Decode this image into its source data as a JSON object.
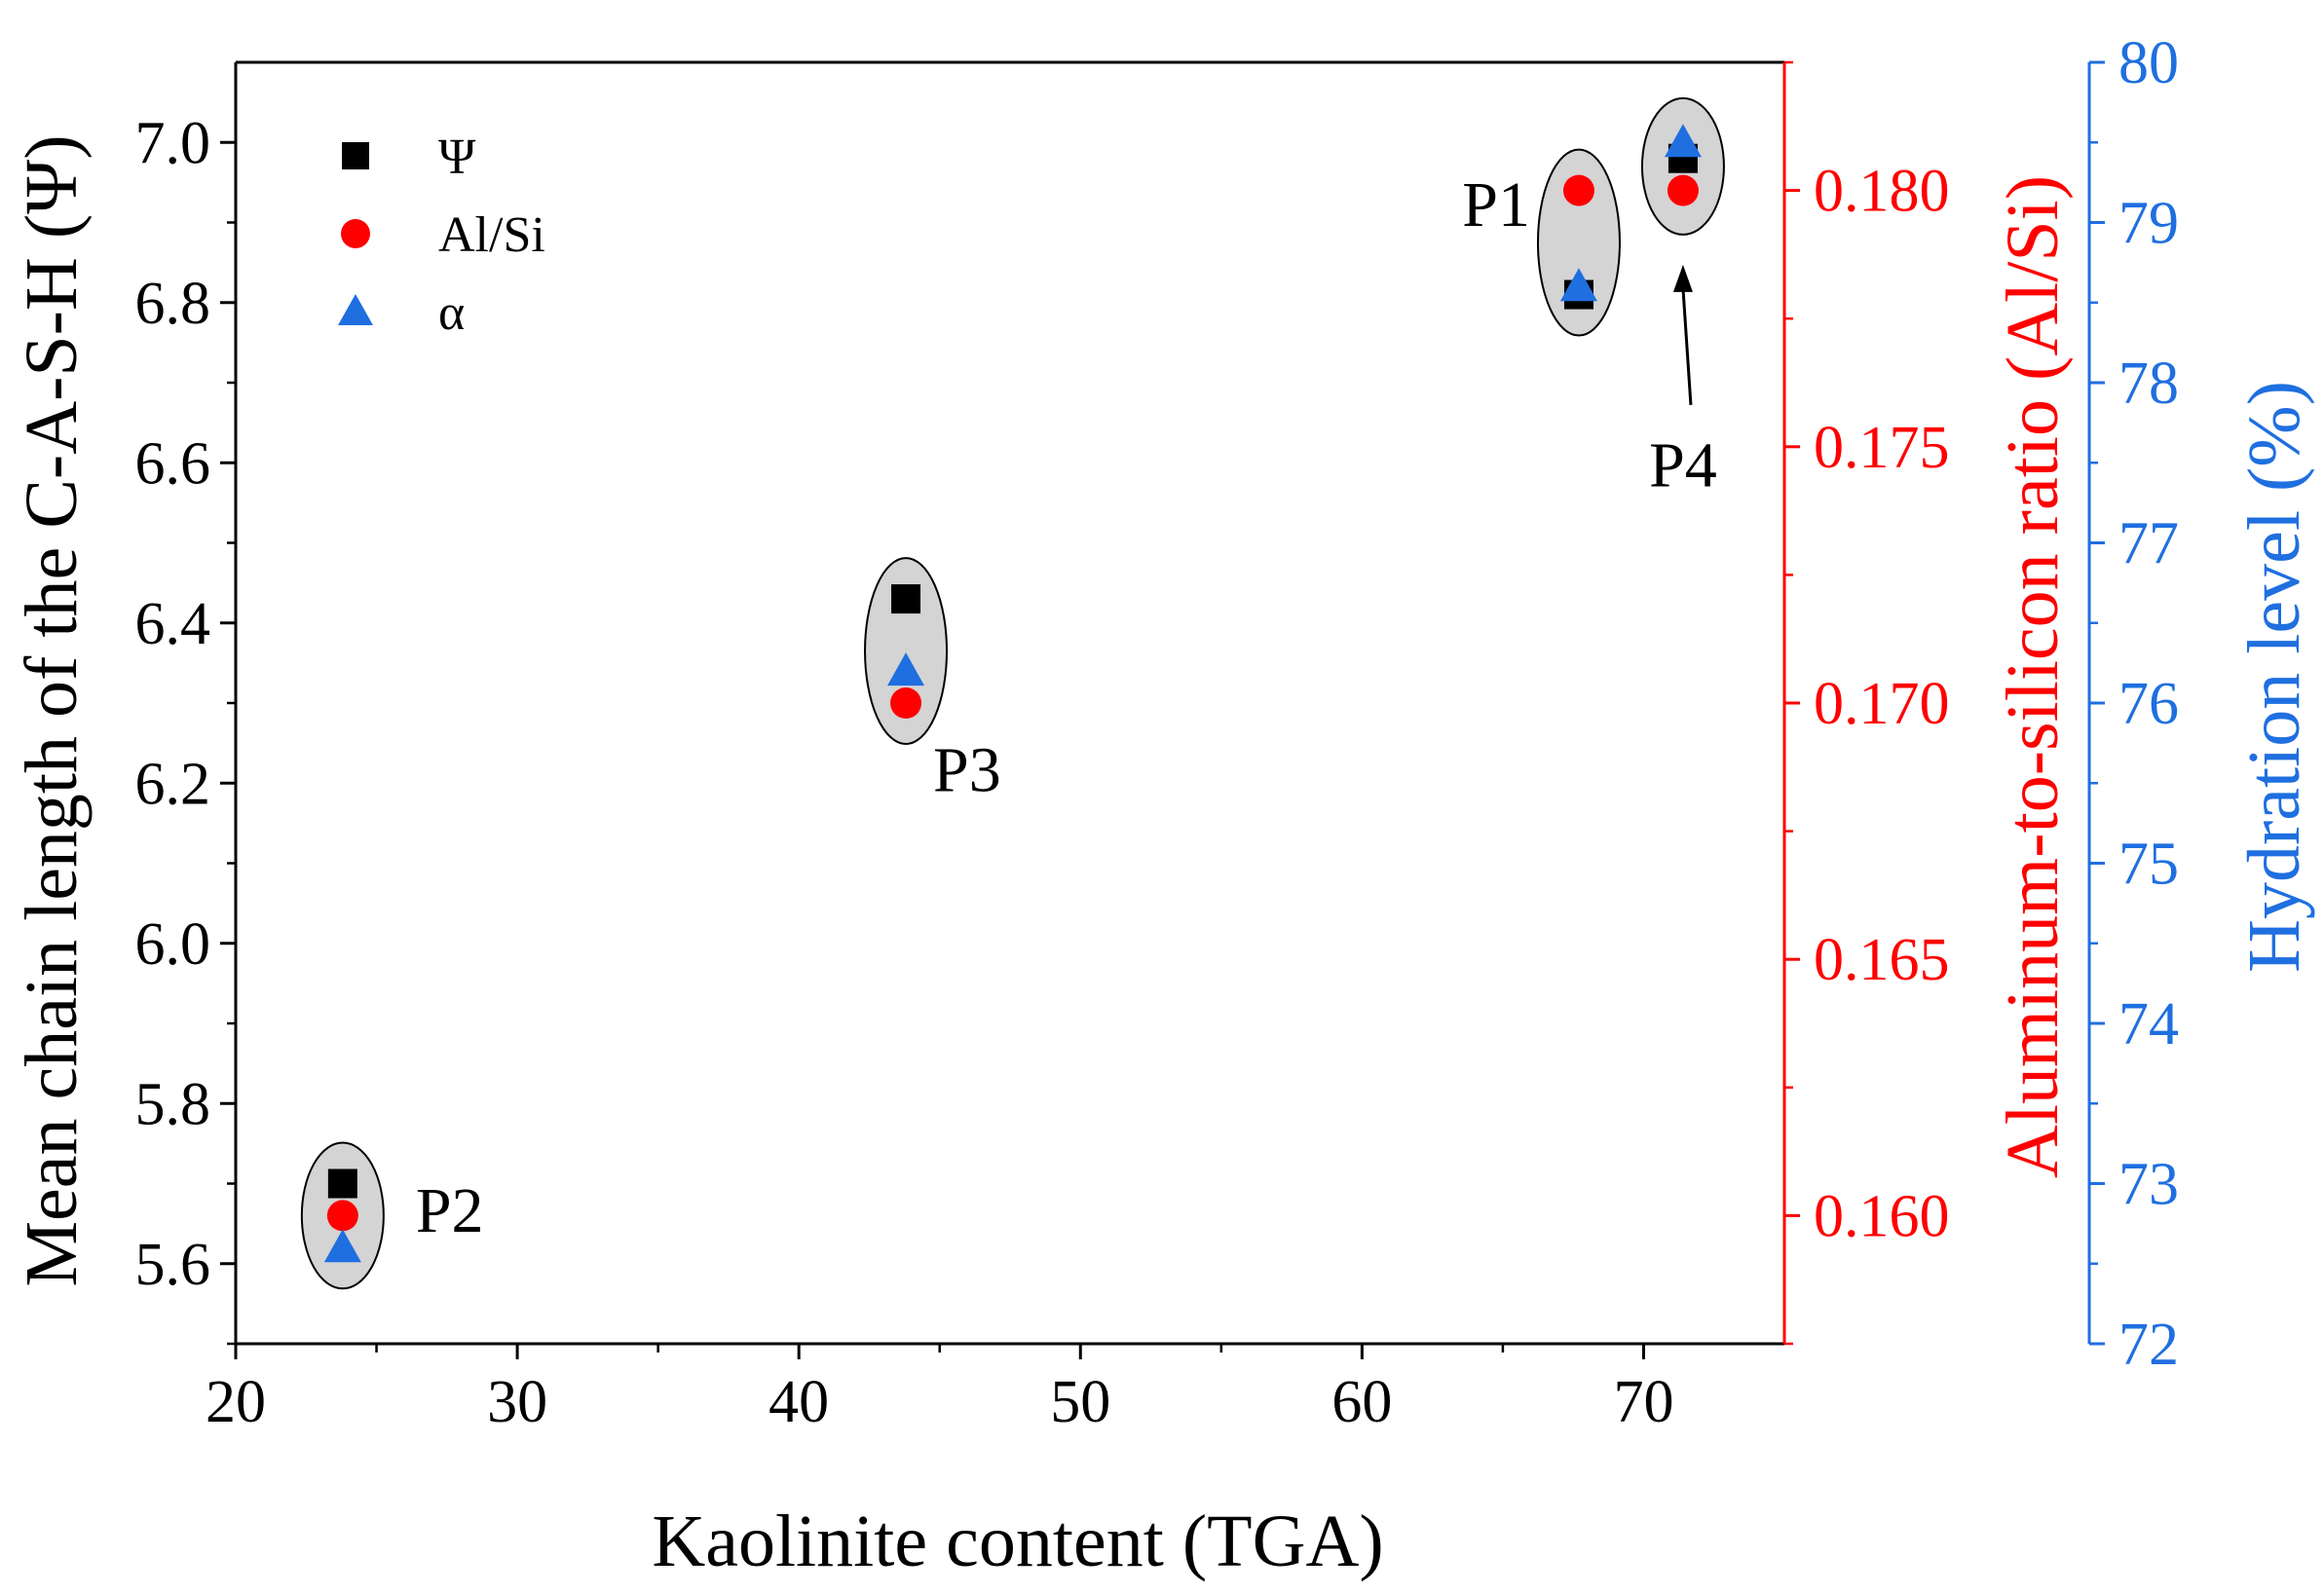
{
  "chart_data": {
    "type": "scatter",
    "xlabel": "Kaolinite content (TGA)",
    "xlim": [
      20,
      75
    ],
    "xticks": [
      20,
      30,
      40,
      50,
      60,
      70
    ],
    "axes": {
      "left": {
        "label": "Mean chain length of the C-A-S-H (Ψ)",
        "lim": [
          5.5,
          7.1
        ],
        "ticks": [
          "5.6",
          "5.8",
          "6.0",
          "6.2",
          "6.4",
          "6.6",
          "6.8",
          "7.0"
        ],
        "color": "#000000"
      },
      "right1": {
        "label": "Aluminum-to-silicon ratio (Al/Si)",
        "lim": [
          0.1575,
          0.1825
        ],
        "ticks": [
          "0.160",
          "0.165",
          "0.170",
          "0.175",
          "0.180"
        ],
        "color": "#ff0000"
      },
      "right2": {
        "label": "Hydration level (%)",
        "lim": [
          72,
          80
        ],
        "ticks": [
          "72",
          "73",
          "74",
          "75",
          "76",
          "77",
          "78",
          "79",
          "80"
        ],
        "color": "#1f6fe0"
      }
    },
    "series": [
      {
        "name": "Ψ",
        "axis": "left",
        "marker": "square",
        "color": "#000000",
        "points": [
          {
            "x": 23.8,
            "y": 5.7
          },
          {
            "x": 43.8,
            "y": 6.43
          },
          {
            "x": 67.7,
            "y": 6.81
          },
          {
            "x": 71.4,
            "y": 6.98
          }
        ]
      },
      {
        "name": "Al/Si",
        "axis": "right1",
        "marker": "circle",
        "color": "#ff0000",
        "points": [
          {
            "x": 23.8,
            "y": 0.16
          },
          {
            "x": 43.8,
            "y": 0.17
          },
          {
            "x": 67.7,
            "y": 0.18
          },
          {
            "x": 71.4,
            "y": 0.18
          }
        ]
      },
      {
        "name": "α",
        "axis": "right2",
        "marker": "triangle",
        "color": "#1f6fe0",
        "points": [
          {
            "x": 23.8,
            "y": 72.6
          },
          {
            "x": 43.8,
            "y": 76.2
          },
          {
            "x": 67.7,
            "y": 78.6
          },
          {
            "x": 71.4,
            "y": 79.5
          }
        ]
      }
    ],
    "groups": [
      {
        "label": "P2",
        "x": 23.8,
        "label_pos": "right"
      },
      {
        "label": "P3",
        "x": 43.8,
        "label_pos": "below"
      },
      {
        "label": "P1",
        "x": 67.7,
        "label_pos": "left"
      },
      {
        "label": "P4",
        "x": 71.4,
        "label_pos": "below-arrow"
      }
    ],
    "legend": {
      "position": "top-left",
      "entries": [
        "Ψ",
        "Al/Si",
        "α"
      ]
    }
  }
}
